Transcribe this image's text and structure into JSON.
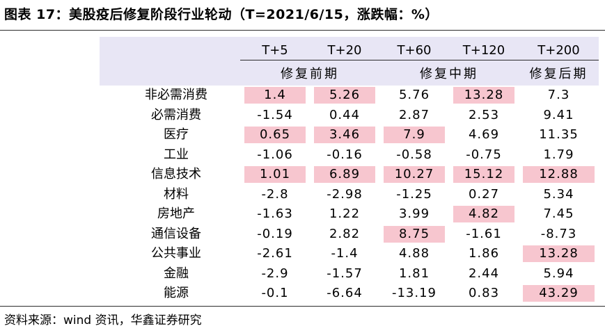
{
  "title": "图表 17：美股疫后修复阶段行业轮动（T=2021/6/15，涨跌幅：%）",
  "columns": [
    "T+5",
    "T+20",
    "T+60",
    "T+120",
    "T+200"
  ],
  "phases": [
    "修复前期",
    "修复中期",
    "修复后期"
  ],
  "rows": [
    {
      "label": "非必需消费",
      "values": [
        "1.4",
        "5.26",
        "5.76",
        "13.28",
        "7.3"
      ],
      "highlight": [
        true,
        true,
        false,
        true,
        false
      ]
    },
    {
      "label": "必需消费",
      "values": [
        "-1.54",
        "0.44",
        "2.87",
        "2.53",
        "9.41"
      ],
      "highlight": [
        false,
        false,
        false,
        false,
        false
      ]
    },
    {
      "label": "医疗",
      "values": [
        "0.65",
        "3.46",
        "7.9",
        "4.69",
        "11.35"
      ],
      "highlight": [
        true,
        true,
        true,
        false,
        false
      ]
    },
    {
      "label": "工业",
      "values": [
        "-1.06",
        "-0.16",
        "-0.58",
        "-0.75",
        "1.79"
      ],
      "highlight": [
        false,
        false,
        false,
        false,
        false
      ]
    },
    {
      "label": "信息技术",
      "values": [
        "1.01",
        "6.89",
        "10.27",
        "15.12",
        "12.88"
      ],
      "highlight": [
        true,
        true,
        true,
        true,
        true
      ]
    },
    {
      "label": "材料",
      "values": [
        "-2.8",
        "-2.98",
        "-1.25",
        "0.27",
        "5.34"
      ],
      "highlight": [
        false,
        false,
        false,
        false,
        false
      ]
    },
    {
      "label": "房地产",
      "values": [
        "-1.63",
        "1.22",
        "3.99",
        "4.82",
        "7.45"
      ],
      "highlight": [
        false,
        false,
        false,
        true,
        false
      ]
    },
    {
      "label": "通信设备",
      "values": [
        "-0.19",
        "2.82",
        "8.75",
        "-1.61",
        "-8.73"
      ],
      "highlight": [
        false,
        false,
        true,
        false,
        false
      ]
    },
    {
      "label": "公共事业",
      "values": [
        "-2.61",
        "-1.4",
        "4.88",
        "1.86",
        "13.28"
      ],
      "highlight": [
        false,
        false,
        false,
        false,
        true
      ]
    },
    {
      "label": "金融",
      "values": [
        "-2.9",
        "-1.57",
        "1.81",
        "2.44",
        "5.94"
      ],
      "highlight": [
        false,
        false,
        false,
        false,
        false
      ]
    },
    {
      "label": "能源",
      "values": [
        "-0.1",
        "-6.64",
        "-13.19",
        "0.83",
        "43.29"
      ],
      "highlight": [
        false,
        false,
        false,
        false,
        true
      ]
    }
  ],
  "source": "资料来源：wind 资讯，华鑫证券研究",
  "colors": {
    "header_bg": "#e8e6f5",
    "highlight_bg": "#f7c6cf"
  }
}
